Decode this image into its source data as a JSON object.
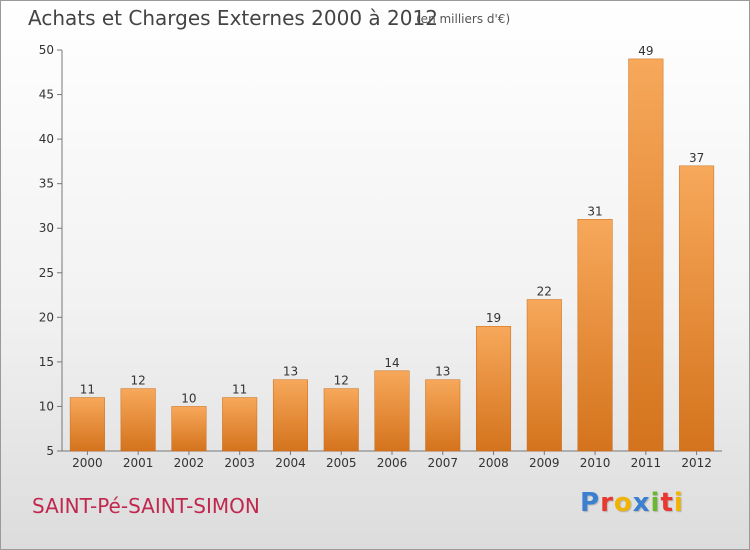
{
  "chart_data": {
    "type": "bar",
    "title": "Achats et Charges Externes 2000 à 2012",
    "subtitle": "(en milliers d'€)",
    "categories": [
      "2000",
      "2001",
      "2002",
      "2003",
      "2004",
      "2005",
      "2006",
      "2007",
      "2008",
      "2009",
      "2010",
      "2011",
      "2012"
    ],
    "values": [
      11,
      12,
      10,
      11,
      13,
      12,
      14,
      13,
      19,
      22,
      31,
      49,
      37
    ],
    "data_labels": [
      "11",
      "12",
      "10",
      "11",
      "13",
      "12",
      "14",
      "13",
      "19",
      "22",
      "31",
      "49",
      "37"
    ],
    "ylim": [
      5,
      50
    ],
    "yticks": [
      5,
      10,
      15,
      20,
      25,
      30,
      35,
      40,
      45,
      50
    ],
    "ytick_labels": [
      "5",
      "10",
      "15",
      "20",
      "25",
      "30",
      "35",
      "40",
      "45",
      "50"
    ],
    "grid": false,
    "legend": "none",
    "bar_color_top": "#f7a85a",
    "bar_color_bottom": "#d4731d"
  },
  "footer": {
    "commune": "SAINT-Pé-SAINT-SIMON",
    "brand_letters": [
      "P",
      "r",
      "o",
      "x",
      "i",
      "t",
      "i"
    ],
    "brand_colors": [
      "#3a7fd0",
      "#e8382f",
      "#f0b400",
      "#3a7fd0",
      "#6bb82e",
      "#e8382f",
      "#f0b400"
    ]
  }
}
